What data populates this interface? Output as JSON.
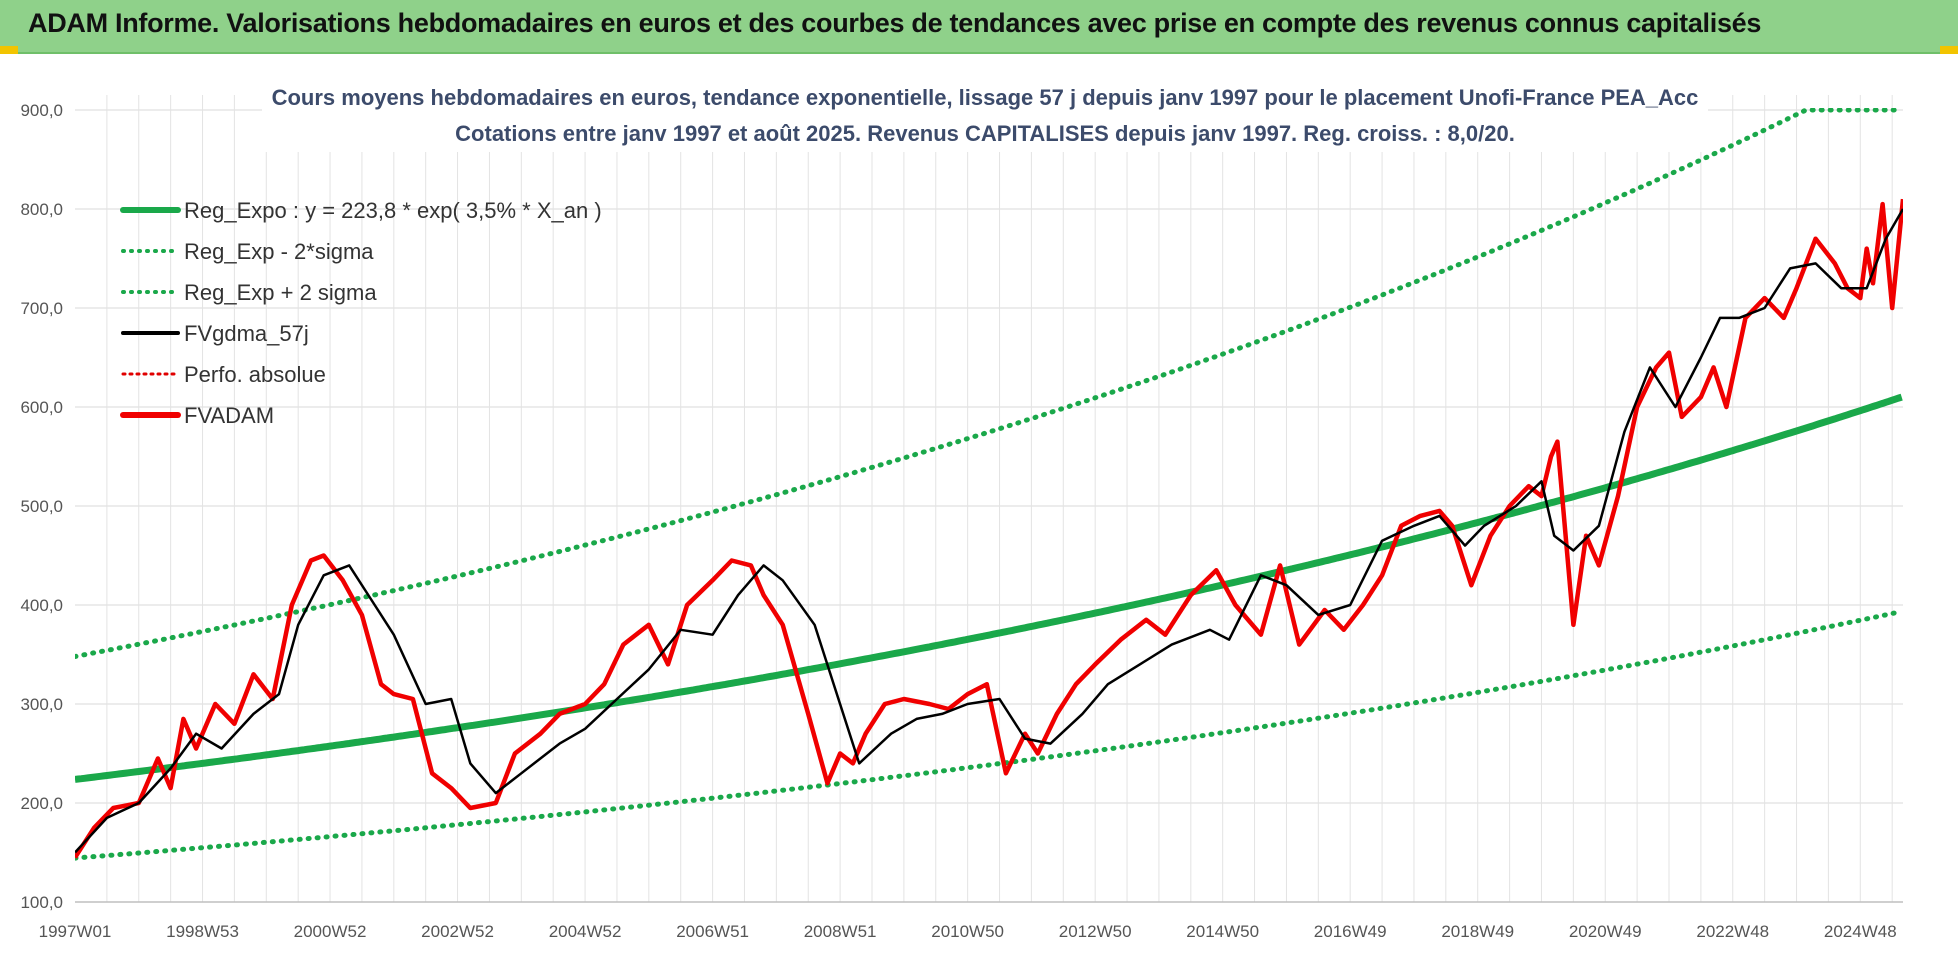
{
  "banner": {
    "title": "ADAM Informe. Valorisations hebdomadaires en euros et des courbes de tendances avec prise en compte des revenus connus capitalisés",
    "bg_color": "#8fd18a"
  },
  "chart_data": {
    "type": "line",
    "title": "Cours moyens hebdomadaires en euros, tendance exponentielle, lissage 57 j depuis janv 1997 pour le placement Unofi-France PEA_Acc",
    "subtitle": "Cotations entre janv 1997 et août 2025. Revenus CAPITALISES depuis janv 1997. Reg. croiss. : 8,0/20.",
    "ylim": [
      100,
      900
    ],
    "xlim": [
      1997.0,
      2025.67
    ],
    "y_ticks": [
      "100,0",
      "200,0",
      "300,0",
      "400,0",
      "500,0",
      "600,0",
      "700,0",
      "800,0",
      "900,0"
    ],
    "x_tick_labels": [
      "1997W01",
      "1998W53",
      "2000W52",
      "2002W52",
      "2004W52",
      "2006W51",
      "2008W51",
      "2010W50",
      "2012W50",
      "2014W50",
      "2016W49",
      "2018W49",
      "2020W49",
      "2022W48",
      "2024W48"
    ],
    "x_tick_positions": [
      1997.0,
      1999.0,
      2001.0,
      2003.0,
      2005.0,
      2007.0,
      2009.0,
      2011.0,
      2013.0,
      2015.0,
      2017.0,
      2019.0,
      2021.0,
      2023.0,
      2025.0
    ],
    "grid": true,
    "legend_position": "top-left",
    "regression": {
      "a": 223.8,
      "r": 0.035,
      "lower_factor": 0.645,
      "upper_factor": 1.555
    },
    "series": [
      {
        "name": "Reg_Expo : y = 223,8 * exp( 3,5% *  X_an )",
        "color": "#1aa84a",
        "style": "solid-thick"
      },
      {
        "name": "Reg_Exp - 2*sigma",
        "color": "#1aa84a",
        "style": "dotted"
      },
      {
        "name": "Reg_Exp + 2 sigma",
        "color": "#1aa84a",
        "style": "dotted"
      },
      {
        "name": "FVgdma_57j",
        "color": "#000000",
        "style": "solid",
        "x": [
          1997.0,
          1997.5,
          1998.0,
          1998.5,
          1998.9,
          1999.3,
          1999.8,
          2000.2,
          2000.5,
          2000.9,
          2001.3,
          2001.7,
          2002.0,
          2002.5,
          2002.9,
          2003.2,
          2003.6,
          2004.0,
          2004.6,
          2005.0,
          2005.5,
          2006.0,
          2006.5,
          2007.0,
          2007.4,
          2007.8,
          2008.1,
          2008.6,
          2008.9,
          2009.3,
          2009.8,
          2010.2,
          2010.6,
          2011.0,
          2011.5,
          2011.9,
          2012.3,
          2012.8,
          2013.2,
          2013.7,
          2014.2,
          2014.8,
          2015.1,
          2015.6,
          2016.0,
          2016.5,
          2017.0,
          2017.5,
          2018.0,
          2018.4,
          2018.8,
          2019.1,
          2019.6,
          2020.0,
          2020.2,
          2020.5,
          2020.9,
          2021.3,
          2021.7,
          2022.1,
          2022.5,
          2022.8,
          2023.1,
          2023.5,
          2023.9,
          2024.3,
          2024.7,
          2025.1,
          2025.4,
          2025.67
        ],
        "values": [
          150,
          185,
          200,
          235,
          270,
          255,
          290,
          310,
          380,
          430,
          440,
          400,
          370,
          300,
          305,
          240,
          210,
          230,
          260,
          275,
          305,
          335,
          375,
          370,
          410,
          440,
          425,
          380,
          320,
          240,
          270,
          285,
          290,
          300,
          305,
          265,
          260,
          290,
          320,
          340,
          360,
          375,
          365,
          430,
          420,
          390,
          400,
          465,
          480,
          490,
          460,
          480,
          500,
          525,
          470,
          455,
          480,
          575,
          640,
          600,
          650,
          690,
          690,
          700,
          740,
          745,
          720,
          720,
          770,
          800
        ]
      },
      {
        "name": "Perfo. absolue",
        "color": "#e00000",
        "style": "dotted"
      },
      {
        "name": "FVADAM",
        "color": "#f00000",
        "style": "solid-thick",
        "x": [
          1997.0,
          1997.3,
          1997.6,
          1998.0,
          1998.3,
          1998.5,
          1998.7,
          1998.9,
          1999.2,
          1999.5,
          1999.8,
          2000.1,
          2000.4,
          2000.7,
          2000.9,
          2001.2,
          2001.5,
          2001.8,
          2002.0,
          2002.3,
          2002.6,
          2002.9,
          2003.2,
          2003.6,
          2003.9,
          2004.3,
          2004.6,
          2005.0,
          2005.3,
          2005.6,
          2006.0,
          2006.3,
          2006.6,
          2007.0,
          2007.3,
          2007.6,
          2007.8,
          2008.1,
          2008.5,
          2008.8,
          2009.0,
          2009.2,
          2009.4,
          2009.7,
          2010.0,
          2010.4,
          2010.7,
          2011.0,
          2011.3,
          2011.6,
          2011.9,
          2012.1,
          2012.4,
          2012.7,
          2013.0,
          2013.4,
          2013.8,
          2014.1,
          2014.5,
          2014.9,
          2015.2,
          2015.6,
          2015.9,
          2016.2,
          2016.6,
          2016.9,
          2017.2,
          2017.5,
          2017.8,
          2018.1,
          2018.4,
          2018.6,
          2018.9,
          2019.2,
          2019.5,
          2019.8,
          2020.0,
          2020.15,
          2020.25,
          2020.5,
          2020.7,
          2020.9,
          2021.2,
          2021.5,
          2021.8,
          2022.0,
          2022.2,
          2022.5,
          2022.7,
          2022.9,
          2023.2,
          2023.5,
          2023.8,
          2024.0,
          2024.3,
          2024.6,
          2024.8,
          2025.0,
          2025.1,
          2025.2,
          2025.35,
          2025.5,
          2025.67
        ],
        "values": [
          145,
          175,
          195,
          200,
          245,
          215,
          285,
          255,
          300,
          280,
          330,
          305,
          400,
          445,
          450,
          425,
          390,
          320,
          310,
          305,
          230,
          215,
          195,
          200,
          250,
          270,
          290,
          300,
          320,
          360,
          380,
          340,
          400,
          425,
          445,
          440,
          410,
          380,
          290,
          220,
          250,
          240,
          270,
          300,
          305,
          300,
          295,
          310,
          320,
          230,
          270,
          250,
          290,
          320,
          340,
          365,
          385,
          370,
          410,
          435,
          400,
          370,
          440,
          360,
          395,
          375,
          400,
          430,
          480,
          490,
          495,
          480,
          420,
          470,
          500,
          520,
          510,
          550,
          565,
          380,
          470,
          440,
          510,
          600,
          640,
          655,
          590,
          610,
          640,
          600,
          690,
          710,
          690,
          720,
          770,
          745,
          720,
          710,
          760,
          725,
          805,
          700,
          810
        ]
      }
    ]
  }
}
